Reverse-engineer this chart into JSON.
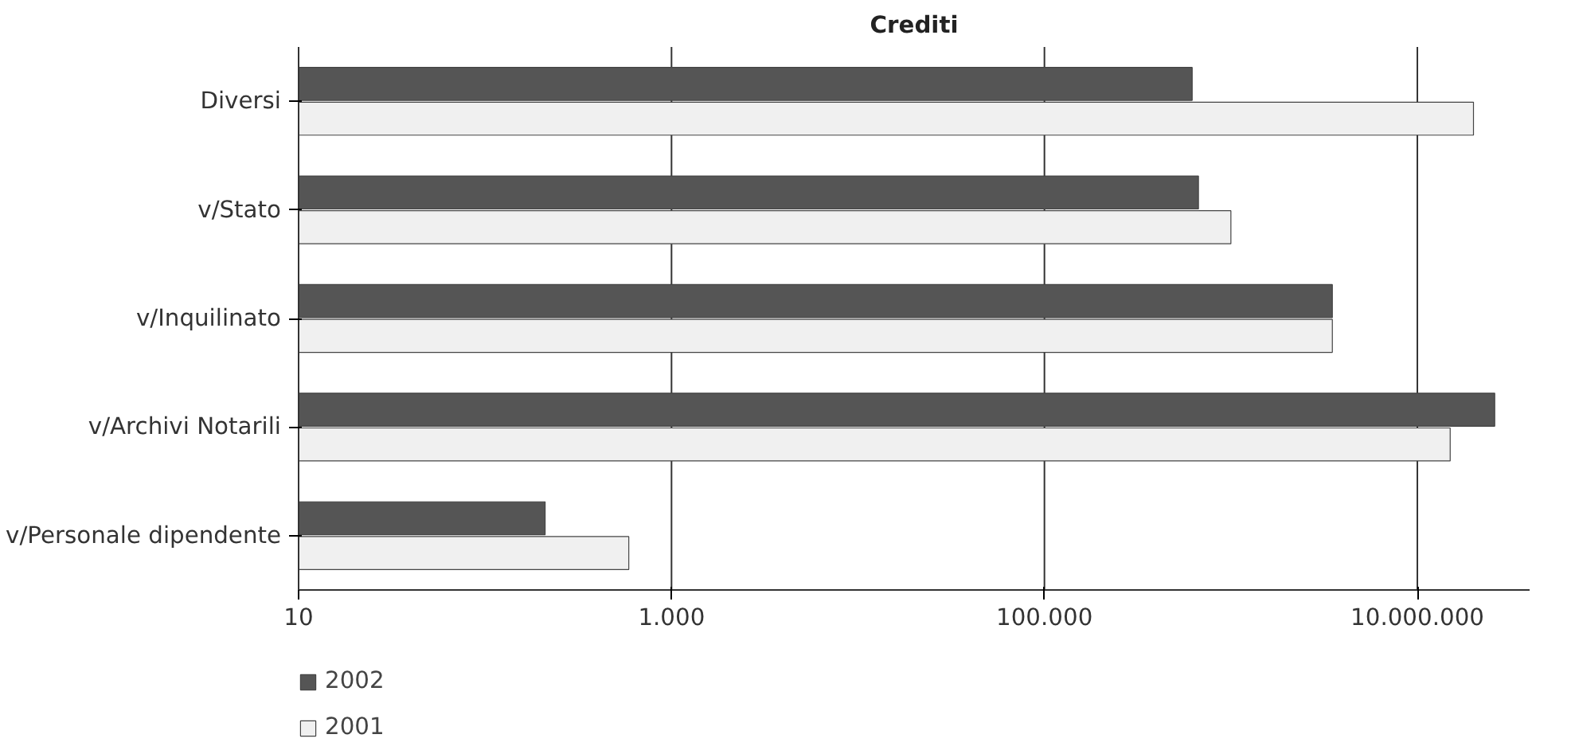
{
  "chart_data": {
    "type": "bar",
    "orientation": "horizontal",
    "title": "Crediti",
    "log": "x",
    "categories": [
      "Diversi",
      "v/Stato",
      "v/Inquilinato",
      "v/Archivi Notarili",
      "v/Personale dipendente"
    ],
    "series": [
      {
        "name": "2002",
        "color": "#555555",
        "values": [
          620000,
          670000,
          3500000,
          26000000,
          210
        ]
      },
      {
        "name": "2001",
        "color": "#f0f0f0",
        "values": [
          20000000,
          1000000,
          3500000,
          15000000,
          590
        ]
      }
    ],
    "xlim": [
      10,
      40000000
    ],
    "xticks": [
      10,
      {
        "value": 1000,
        "label": "1.000"
      },
      {
        "value": 100000,
        "label": "100.000"
      },
      {
        "value": 10000000,
        "label": "10.000.000"
      }
    ],
    "grid": "x",
    "legend": "bottom left"
  }
}
